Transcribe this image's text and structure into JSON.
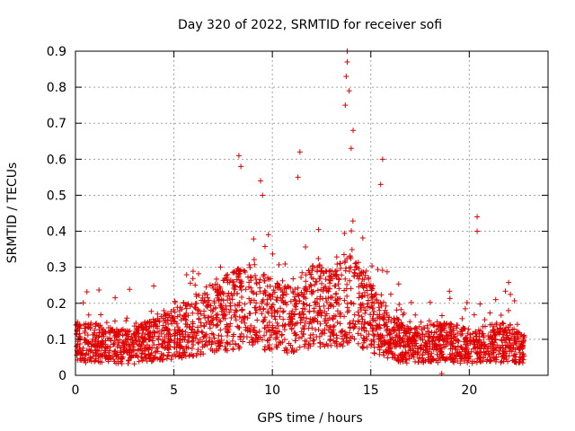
{
  "chart_data": {
    "type": "scatter",
    "title": "Day 320 of 2022, SRMTID for receiver sofi",
    "xlabel": "GPS time / hours",
    "ylabel": "SRMTID / TECUs",
    "xlim": [
      0,
      24
    ],
    "ylim": [
      0,
      0.9
    ],
    "xticks": [
      0,
      5,
      10,
      15,
      20
    ],
    "xtick_labels": [
      "0",
      "5",
      "10",
      "15",
      "20"
    ],
    "yticks": [
      0,
      0.1,
      0.2,
      0.3,
      0.4,
      0.5,
      0.6,
      0.7,
      0.8,
      0.9
    ],
    "ytick_labels": [
      "0",
      "0.1",
      "0.2",
      "0.3",
      "0.4",
      "0.5",
      "0.6",
      "0.7",
      "0.8",
      "0.9"
    ],
    "grid": true,
    "marker": "+",
    "color": "#e00000",
    "data_span_hours": [
      0,
      22.8
    ],
    "baseline_profile": [
      [
        0,
        0.1
      ],
      [
        1,
        0.1
      ],
      [
        2,
        0.09
      ],
      [
        3,
        0.09
      ],
      [
        4,
        0.11
      ],
      [
        5,
        0.13
      ],
      [
        6,
        0.15
      ],
      [
        7,
        0.18
      ],
      [
        8,
        0.2
      ],
      [
        9,
        0.22
      ],
      [
        10,
        0.18
      ],
      [
        11,
        0.17
      ],
      [
        12,
        0.22
      ],
      [
        13,
        0.2
      ],
      [
        14,
        0.25
      ],
      [
        15,
        0.18
      ],
      [
        16,
        0.12
      ],
      [
        17,
        0.09
      ],
      [
        18,
        0.1
      ],
      [
        19,
        0.1
      ],
      [
        20,
        0.09
      ],
      [
        21,
        0.1
      ],
      [
        22,
        0.1
      ],
      [
        22.8,
        0.08
      ]
    ],
    "peaks": [
      {
        "x": 8.3,
        "y": 0.61
      },
      {
        "x": 8.4,
        "y": 0.58
      },
      {
        "x": 9.4,
        "y": 0.54
      },
      {
        "x": 9.5,
        "y": 0.5
      },
      {
        "x": 11.4,
        "y": 0.62
      },
      {
        "x": 11.3,
        "y": 0.55
      },
      {
        "x": 13.8,
        "y": 0.9
      },
      {
        "x": 13.8,
        "y": 0.87
      },
      {
        "x": 13.75,
        "y": 0.83
      },
      {
        "x": 13.9,
        "y": 0.79
      },
      {
        "x": 13.7,
        "y": 0.75
      },
      {
        "x": 14.1,
        "y": 0.68
      },
      {
        "x": 14.0,
        "y": 0.63
      },
      {
        "x": 15.6,
        "y": 0.6
      },
      {
        "x": 15.5,
        "y": 0.53
      },
      {
        "x": 20.4,
        "y": 0.44
      },
      {
        "x": 20.4,
        "y": 0.4
      },
      {
        "x": 18.6,
        "y": 0.005
      }
    ]
  }
}
